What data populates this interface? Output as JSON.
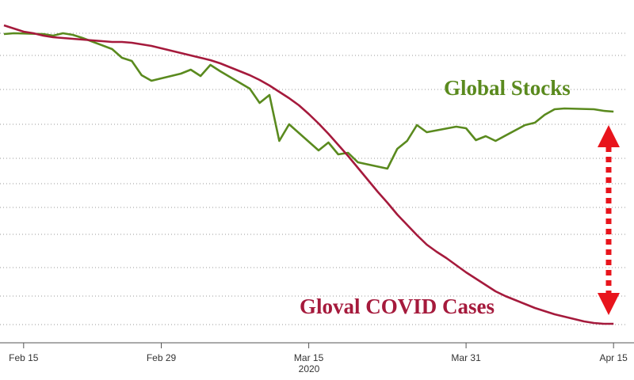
{
  "chart_data": {
    "type": "line",
    "year_label": "2020",
    "annotations": [
      "Global Stocks",
      "Gloval COVID Cases"
    ],
    "xlim": [
      "2020-02-13",
      "2020-04-17"
    ],
    "xticks": [
      {
        "value": "2020-02-15",
        "label": "Feb 15"
      },
      {
        "value": "2020-02-29",
        "label": "Feb 29"
      },
      {
        "value": "2020-03-15",
        "label": "Mar 15"
      },
      {
        "value": "2020-03-31",
        "label": "Mar 31"
      },
      {
        "value": "2020-04-15",
        "label": "Apr 15"
      }
    ],
    "ylim": [
      0,
      430
    ],
    "yticks": [
      20,
      56,
      92,
      134,
      168,
      198,
      230,
      273,
      317,
      360,
      388
    ],
    "grid": true,
    "series": [
      {
        "name": "Global Stocks",
        "color": "#5a8a1e",
        "x": [
          "2020-02-13",
          "2020-02-14",
          "2020-02-17",
          "2020-02-18",
          "2020-02-19",
          "2020-02-20",
          "2020-02-21",
          "2020-02-24",
          "2020-02-25",
          "2020-02-26",
          "2020-02-27",
          "2020-02-28",
          "2020-03-02",
          "2020-03-03",
          "2020-03-04",
          "2020-03-05",
          "2020-03-06",
          "2020-03-09",
          "2020-03-10",
          "2020-03-11",
          "2020-03-12",
          "2020-03-13",
          "2020-03-16",
          "2020-03-17",
          "2020-03-18",
          "2020-03-19",
          "2020-03-20",
          "2020-03-23",
          "2020-03-24",
          "2020-03-25",
          "2020-03-26",
          "2020-03-27",
          "2020-03-30",
          "2020-03-31",
          "2020-04-01",
          "2020-04-02",
          "2020-04-03",
          "2020-04-06",
          "2020-04-07",
          "2020-04-08",
          "2020-04-09",
          "2020-04-10",
          "2020-04-13",
          "2020-04-14",
          "2020-04-15"
        ],
        "values": [
          387,
          388,
          387,
          385,
          388,
          386,
          382,
          368,
          357,
          353,
          335,
          328,
          337,
          342,
          334,
          348,
          340,
          318,
          300,
          310,
          252,
          273,
          240,
          250,
          235,
          237,
          225,
          217,
          242,
          252,
          272,
          263,
          270,
          268,
          253,
          258,
          252,
          272,
          275,
          285,
          292,
          293,
          292,
          290,
          289
        ]
      },
      {
        "name": "Gloval COVID Cases",
        "color": "#a51a3c",
        "x": [
          "2020-02-13",
          "2020-02-14",
          "2020-02-15",
          "2020-02-16",
          "2020-02-17",
          "2020-02-18",
          "2020-02-19",
          "2020-02-20",
          "2020-02-21",
          "2020-02-22",
          "2020-02-23",
          "2020-02-24",
          "2020-02-25",
          "2020-02-26",
          "2020-02-27",
          "2020-02-28",
          "2020-02-29",
          "2020-03-01",
          "2020-03-02",
          "2020-03-03",
          "2020-03-04",
          "2020-03-05",
          "2020-03-06",
          "2020-03-07",
          "2020-03-08",
          "2020-03-09",
          "2020-03-10",
          "2020-03-11",
          "2020-03-12",
          "2020-03-13",
          "2020-03-14",
          "2020-03-15",
          "2020-03-16",
          "2020-03-17",
          "2020-03-18",
          "2020-03-19",
          "2020-03-20",
          "2020-03-21",
          "2020-03-22",
          "2020-03-23",
          "2020-03-24",
          "2020-03-25",
          "2020-03-26",
          "2020-03-27",
          "2020-03-28",
          "2020-03-29",
          "2020-03-30",
          "2020-03-31",
          "2020-04-01",
          "2020-04-02",
          "2020-04-03",
          "2020-04-04",
          "2020-04-05",
          "2020-04-06",
          "2020-04-07",
          "2020-04-08",
          "2020-04-09",
          "2020-04-10",
          "2020-04-11",
          "2020-04-12",
          "2020-04-13",
          "2020-04-14",
          "2020-04-15"
        ],
        "values": [
          398,
          394,
          390,
          388,
          385,
          383,
          382,
          381,
          380,
          379,
          378,
          377,
          377,
          376,
          374,
          372,
          369,
          366,
          363,
          360,
          357,
          354,
          350,
          345,
          340,
          335,
          329,
          322,
          314,
          306,
          297,
          286,
          274,
          261,
          247,
          233,
          218,
          203,
          188,
          174,
          159,
          146,
          133,
          121,
          112,
          104,
          95,
          86,
          78,
          70,
          62,
          56,
          51,
          46,
          41,
          37,
          33,
          30,
          27,
          24,
          22,
          21,
          21
        ]
      }
    ]
  }
}
